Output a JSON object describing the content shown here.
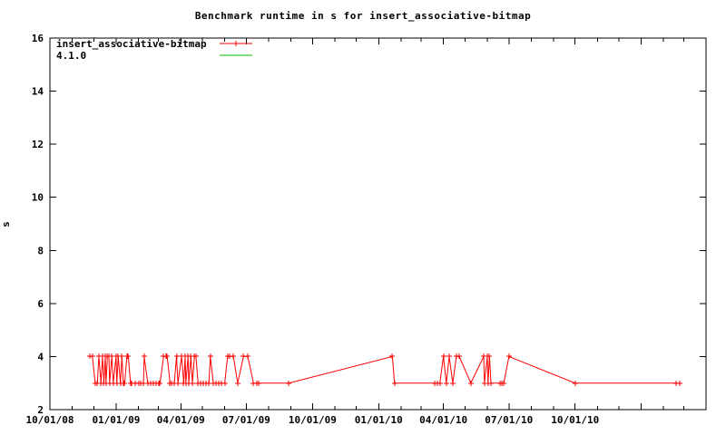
{
  "chart_data": {
    "type": "line",
    "title": "Benchmark runtime in s for insert_associative-bitmap",
    "ylabel": "s",
    "xlabel": "",
    "grid": false,
    "legend_position": "top-left",
    "x_range": [
      "2008-10-01",
      "2011-04-01"
    ],
    "y_range": [
      2,
      16
    ],
    "y_tick_step": 2,
    "y_tick_labels": [
      "2",
      "4",
      "6",
      "8",
      "10",
      "12",
      "14",
      "16"
    ],
    "x_tick_labels": [
      "10/01/08",
      "01/01/09",
      "04/01/09",
      "07/01/09",
      "10/01/09",
      "01/01/10",
      "04/01/10",
      "07/01/10",
      "10/01/10"
    ],
    "x_major_tick_every_months": 3,
    "x_minor_tick_every_months": 1,
    "axis_color": "#000000",
    "background_color": "#ffffff",
    "series": [
      {
        "name": "insert_associative-bitmap",
        "color": "#ff0000",
        "marker": "plus",
        "points": [
          [
            "2008-11-26",
            4
          ],
          [
            "2008-11-29",
            4
          ],
          [
            "2008-12-03",
            3
          ],
          [
            "2008-12-06",
            3
          ],
          [
            "2008-12-08",
            4
          ],
          [
            "2008-12-11",
            3
          ],
          [
            "2008-12-13",
            4
          ],
          [
            "2008-12-15",
            3
          ],
          [
            "2008-12-17",
            4
          ],
          [
            "2008-12-18",
            3
          ],
          [
            "2008-12-20",
            4
          ],
          [
            "2008-12-22",
            4
          ],
          [
            "2008-12-23",
            3
          ],
          [
            "2008-12-26",
            4
          ],
          [
            "2008-12-28",
            3
          ],
          [
            "2009-01-01",
            4
          ],
          [
            "2009-01-02",
            3
          ],
          [
            "2009-01-04",
            4
          ],
          [
            "2009-01-07",
            3
          ],
          [
            "2009-01-09",
            4
          ],
          [
            "2009-01-11",
            3
          ],
          [
            "2009-01-13",
            3
          ],
          [
            "2009-01-16",
            4
          ],
          [
            "2009-01-18",
            4
          ],
          [
            "2009-01-21",
            3
          ],
          [
            "2009-01-23",
            3
          ],
          [
            "2009-01-27",
            3
          ],
          [
            "2009-02-01",
            3
          ],
          [
            "2009-02-04",
            3
          ],
          [
            "2009-02-08",
            3
          ],
          [
            "2009-02-09",
            4
          ],
          [
            "2009-02-14",
            3
          ],
          [
            "2009-02-18",
            3
          ],
          [
            "2009-02-22",
            3
          ],
          [
            "2009-02-26",
            3
          ],
          [
            "2009-03-01",
            3
          ],
          [
            "2009-03-03",
            3
          ],
          [
            "2009-03-08",
            4
          ],
          [
            "2009-03-11",
            4
          ],
          [
            "2009-03-13",
            4
          ],
          [
            "2009-03-17",
            3
          ],
          [
            "2009-03-19",
            3
          ],
          [
            "2009-03-23",
            3
          ],
          [
            "2009-03-26",
            4
          ],
          [
            "2009-03-28",
            3
          ],
          [
            "2009-04-02",
            4
          ],
          [
            "2009-04-05",
            3
          ],
          [
            "2009-04-07",
            4
          ],
          [
            "2009-04-08",
            3
          ],
          [
            "2009-04-11",
            4
          ],
          [
            "2009-04-12",
            3
          ],
          [
            "2009-04-15",
            4
          ],
          [
            "2009-04-17",
            3
          ],
          [
            "2009-04-20",
            4
          ],
          [
            "2009-04-22",
            4
          ],
          [
            "2009-04-25",
            3
          ],
          [
            "2009-04-28",
            3
          ],
          [
            "2009-05-02",
            3
          ],
          [
            "2009-05-06",
            3
          ],
          [
            "2009-05-10",
            3
          ],
          [
            "2009-05-12",
            4
          ],
          [
            "2009-05-16",
            3
          ],
          [
            "2009-05-20",
            3
          ],
          [
            "2009-05-23",
            3
          ],
          [
            "2009-05-27",
            3
          ],
          [
            "2009-06-01",
            3
          ],
          [
            "2009-06-05",
            4
          ],
          [
            "2009-06-08",
            4
          ],
          [
            "2009-06-13",
            4
          ],
          [
            "2009-06-19",
            3
          ],
          [
            "2009-06-27",
            4
          ],
          [
            "2009-07-03",
            4
          ],
          [
            "2009-07-11",
            3
          ],
          [
            "2009-07-15",
            3
          ],
          [
            "2009-07-18",
            3
          ],
          [
            "2009-08-29",
            3
          ],
          [
            "2010-01-20",
            4
          ],
          [
            "2010-01-23",
            3
          ],
          [
            "2010-03-20",
            3
          ],
          [
            "2010-03-23",
            3
          ],
          [
            "2010-03-27",
            3
          ],
          [
            "2010-04-01",
            4
          ],
          [
            "2010-04-05",
            3
          ],
          [
            "2010-04-09",
            4
          ],
          [
            "2010-04-14",
            3
          ],
          [
            "2010-04-19",
            4
          ],
          [
            "2010-04-23",
            4
          ],
          [
            "2010-05-09",
            3
          ],
          [
            "2010-05-27",
            4
          ],
          [
            "2010-05-28",
            3
          ],
          [
            "2010-06-01",
            4
          ],
          [
            "2010-06-02",
            3
          ],
          [
            "2010-06-04",
            4
          ],
          [
            "2010-06-06",
            3
          ],
          [
            "2010-06-19",
            3
          ],
          [
            "2010-06-21",
            3
          ],
          [
            "2010-06-24",
            3
          ],
          [
            "2010-07-01",
            4
          ],
          [
            "2010-10-01",
            3
          ],
          [
            "2011-02-19",
            3
          ],
          [
            "2011-02-23",
            3
          ]
        ]
      },
      {
        "name": "4.1.0",
        "color": "#00c000",
        "marker": "none",
        "points": []
      }
    ]
  }
}
